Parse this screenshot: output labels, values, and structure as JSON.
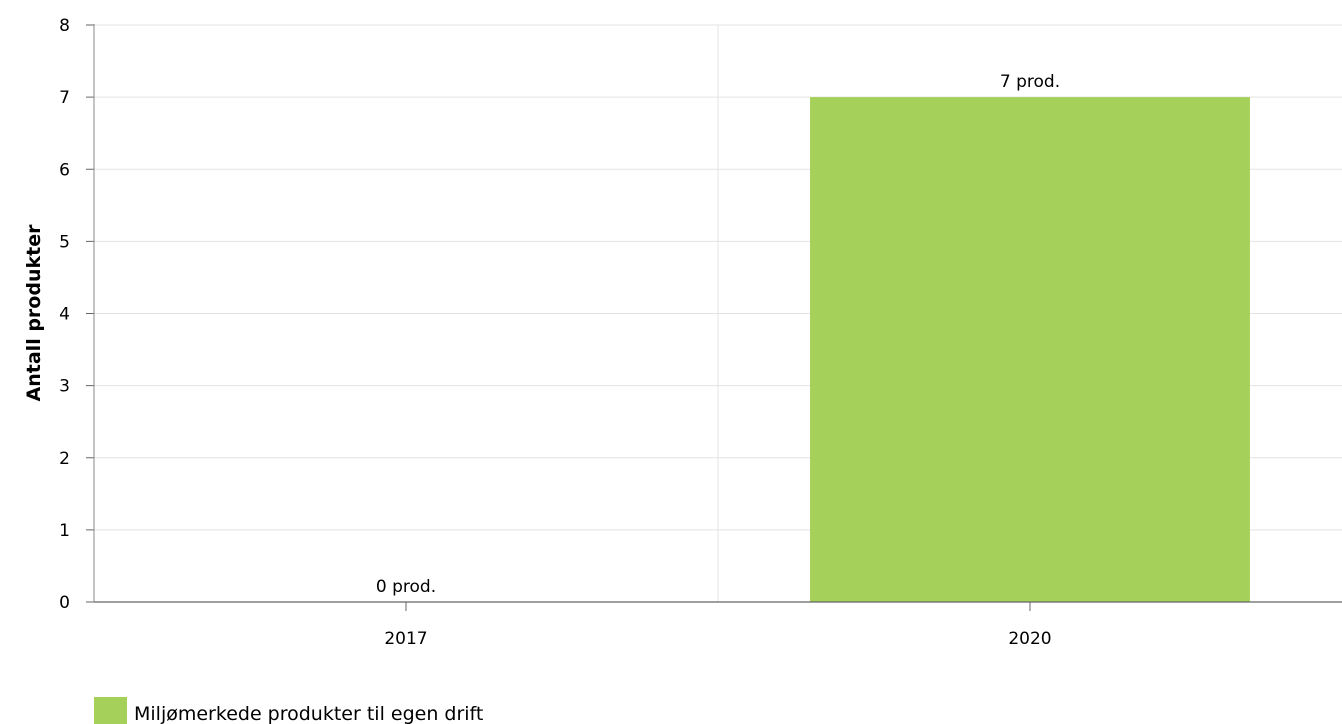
{
  "chart_data": {
    "type": "bar",
    "categories": [
      "2017",
      "2020"
    ],
    "series": [
      {
        "name": "Miljømerkede produkter til egen drift",
        "values": [
          0,
          7
        ],
        "data_labels": [
          "0 prod.",
          "7 prod."
        ],
        "color": "#a5d05a"
      }
    ],
    "ylabel": "Antall produkter",
    "xlabel": "",
    "ylim": [
      0,
      8
    ],
    "yticks": [
      0,
      1,
      2,
      3,
      4,
      5,
      6,
      7,
      8
    ],
    "grid": true,
    "legend_position": "bottom-left"
  }
}
